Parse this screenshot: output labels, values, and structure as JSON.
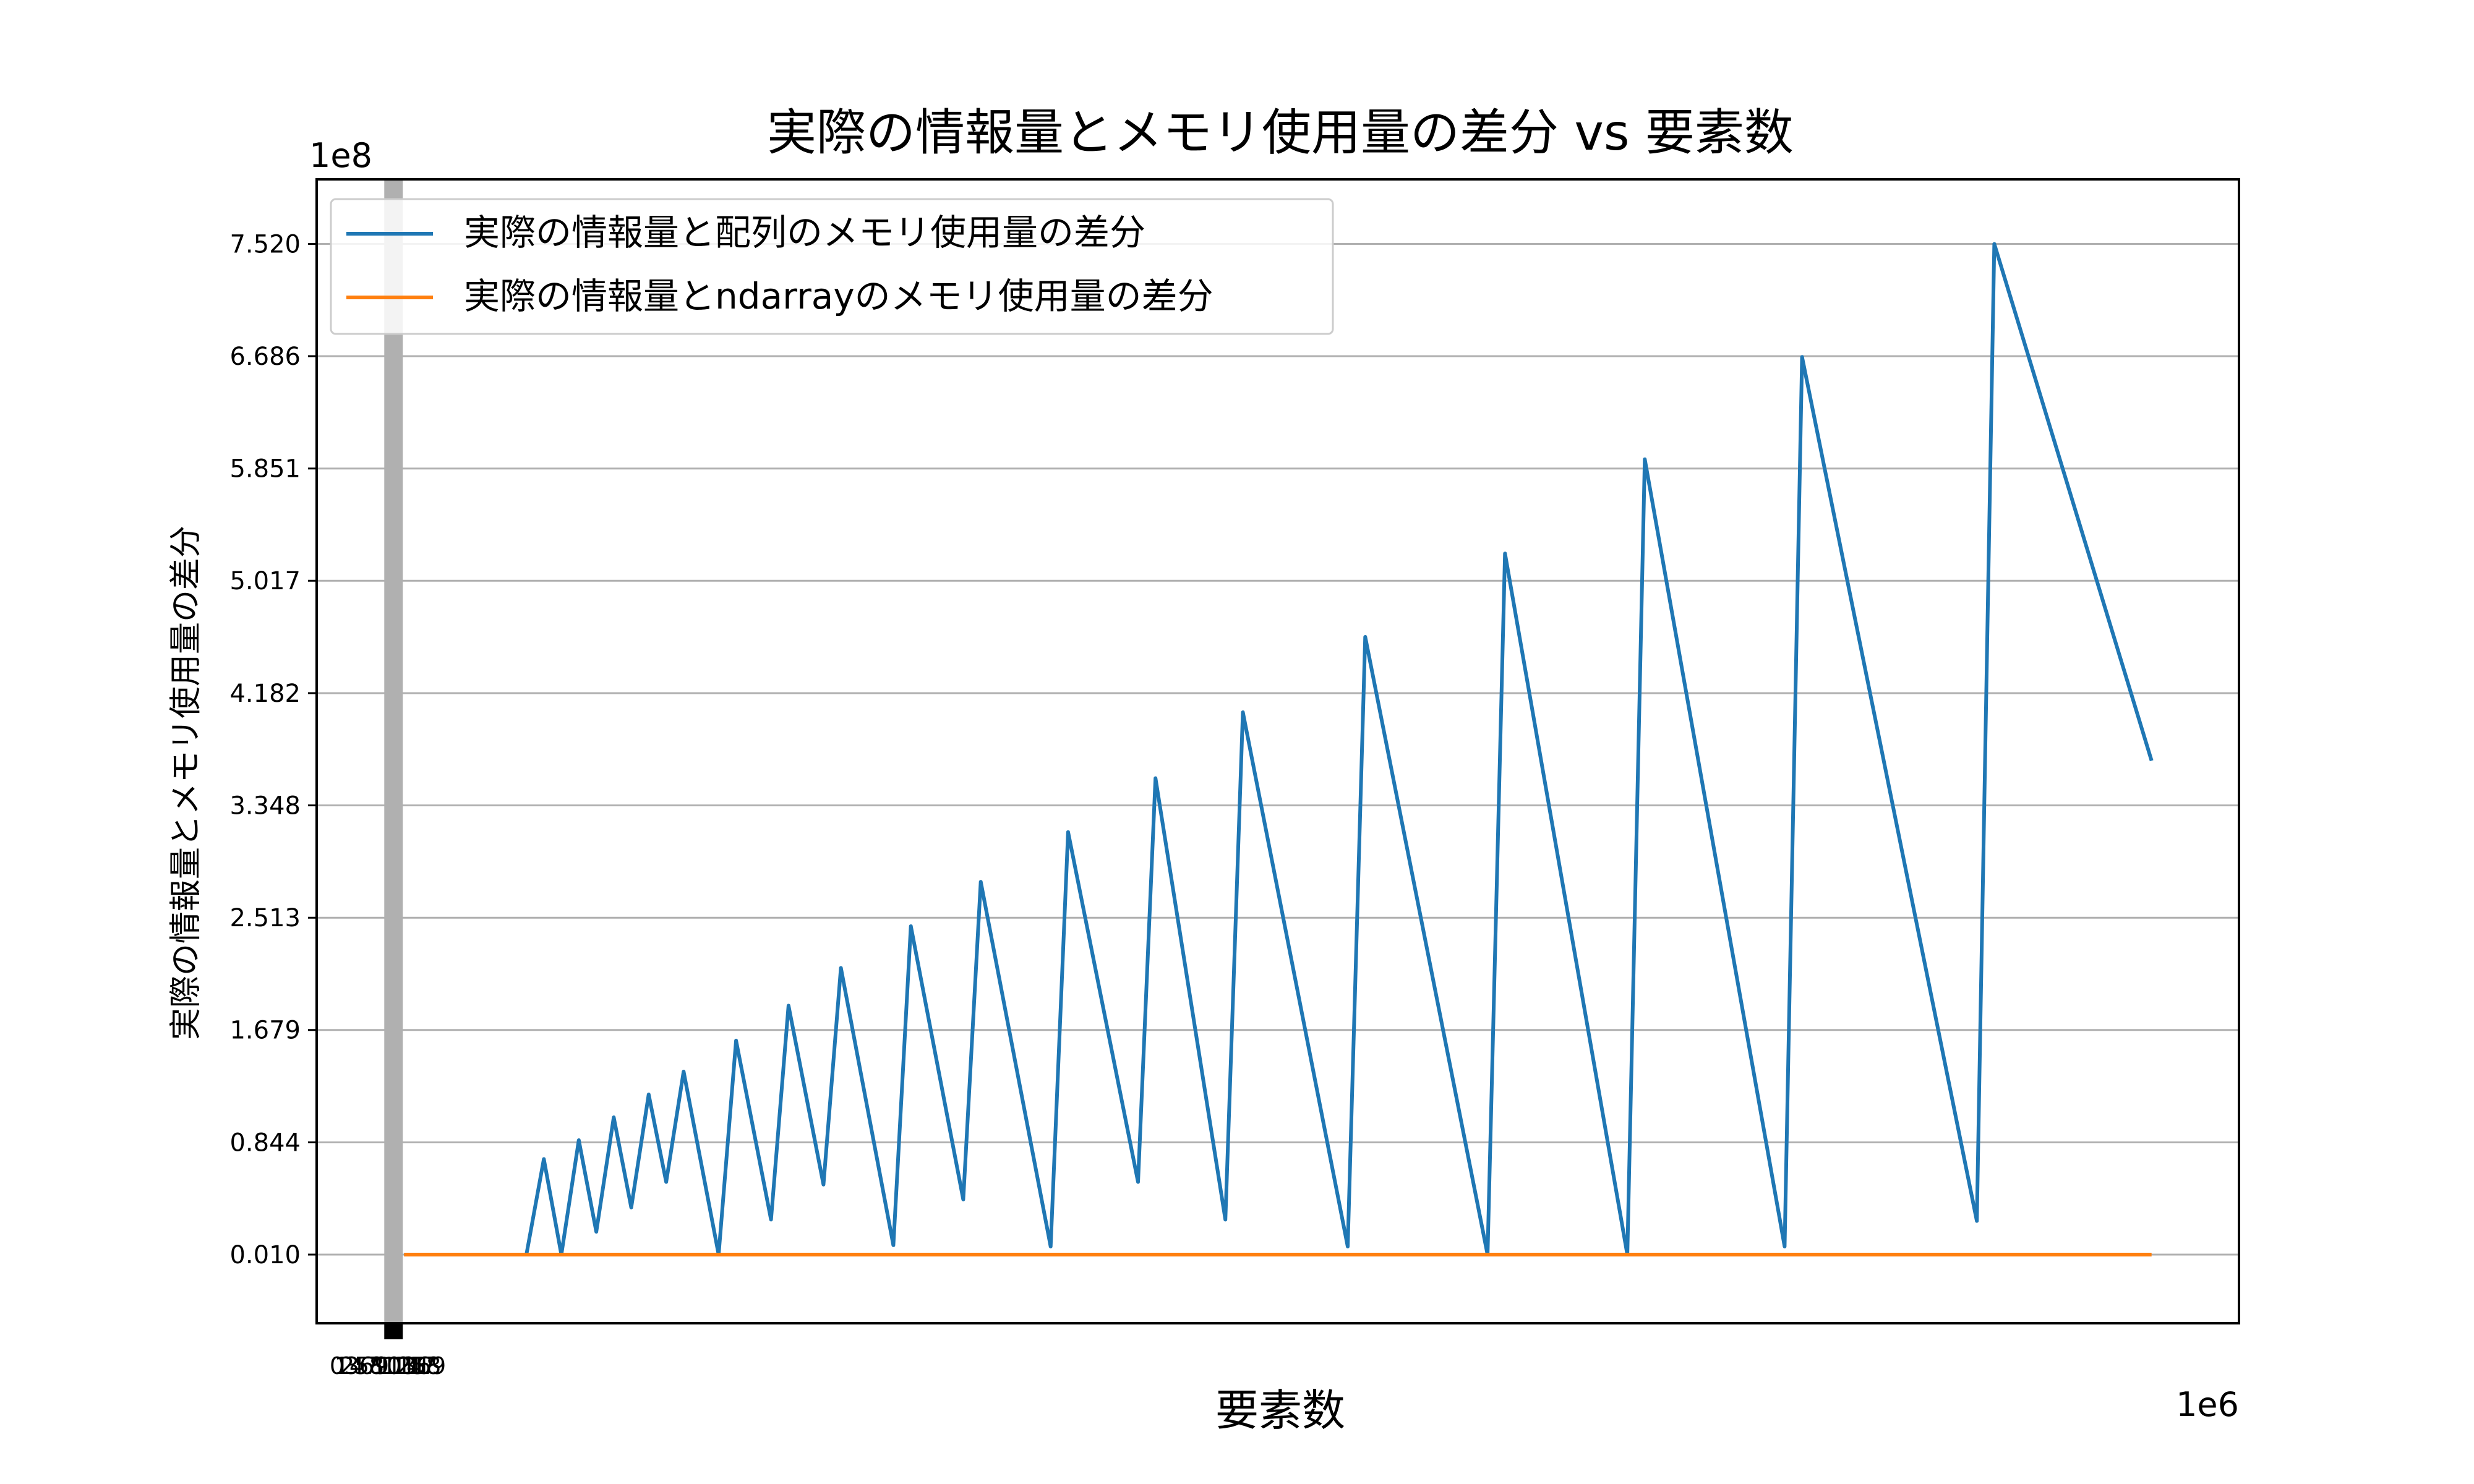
{
  "chart_data": {
    "type": "line",
    "title": "実際の情報量とメモリ使用量の差分 vs 要素数",
    "xlabel": "要素数",
    "ylabel": "実際の情報量とメモリ使用量の差分",
    "x_offset_label": "1e6",
    "y_offset_label": "1e8",
    "xlim": [
      -0.05,
      1.05
    ],
    "ylim": [
      -0.5,
      8.0
    ],
    "y_ticks": [
      "0.010",
      "0.844",
      "1.679",
      "2.513",
      "3.348",
      "4.182",
      "5.017",
      "5.851",
      "6.686",
      "7.520"
    ],
    "x_tick_labels": [
      "0",
      "1",
      "2",
      "3",
      "4",
      "5",
      "6",
      "7",
      "8",
      "9",
      "10",
      "11",
      "12",
      "13",
      "14",
      "15",
      "16",
      "17",
      "18",
      "19"
    ],
    "grid": "horizontal",
    "legend_position": "top-left",
    "series": [
      {
        "name": "実際の情報量と配列のメモリ使用量の差分",
        "color": "#1f77b4",
        "x": [
          0.0,
          0.07,
          0.08,
          0.09,
          0.1,
          0.11,
          0.12,
          0.13,
          0.14,
          0.15,
          0.16,
          0.18,
          0.19,
          0.21,
          0.22,
          0.24,
          0.25,
          0.28,
          0.29,
          0.32,
          0.33,
          0.37,
          0.38,
          0.42,
          0.43,
          0.47,
          0.48,
          0.54,
          0.55,
          0.62,
          0.63,
          0.7,
          0.71,
          0.79,
          0.8,
          0.9,
          0.91,
          1.0
        ],
        "y": [
          0.01,
          0.01,
          0.72,
          0.01,
          0.86,
          0.18,
          1.03,
          0.36,
          1.2,
          0.55,
          1.37,
          0.01,
          1.6,
          0.27,
          1.86,
          0.53,
          2.14,
          0.08,
          2.45,
          0.42,
          2.78,
          0.07,
          3.15,
          0.55,
          3.55,
          0.27,
          4.04,
          0.07,
          4.6,
          0.01,
          5.22,
          0.01,
          5.92,
          0.07,
          6.68,
          0.26,
          7.52,
          3.68
        ]
      },
      {
        "name": "実際の情報量とndarrayのメモリ使用量の差分",
        "color": "#ff7f0e",
        "x": [
          0.0,
          1.0
        ],
        "y": [
          0.01,
          0.01
        ]
      }
    ]
  }
}
